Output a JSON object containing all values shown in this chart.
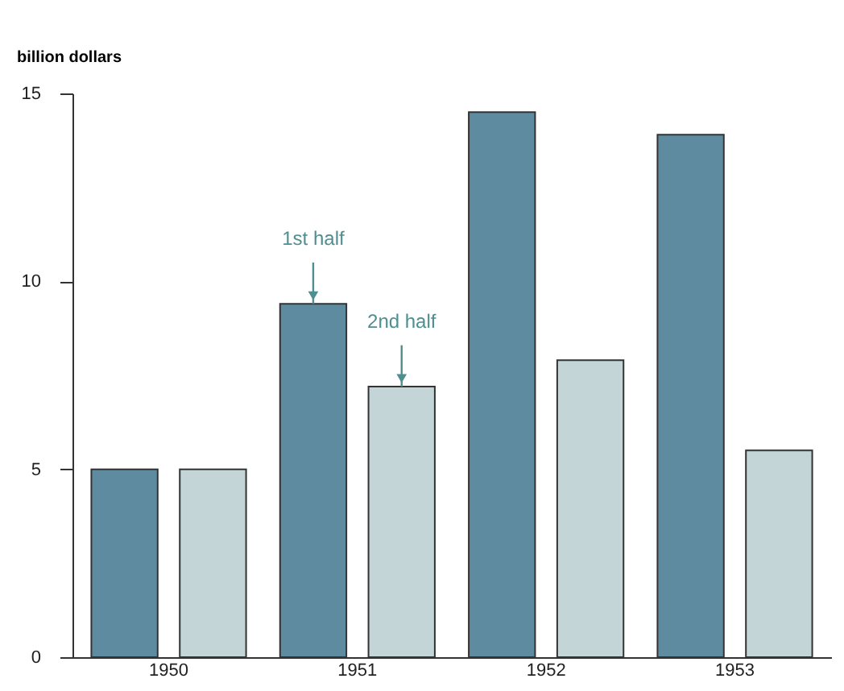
{
  "chart_data": {
    "type": "bar",
    "ylabel": "billion dollars",
    "categories": [
      "1950",
      "1951",
      "1952",
      "1953"
    ],
    "series": [
      {
        "name": "1st half",
        "color": "#5f8ba1",
        "values": [
          5.0,
          9.4,
          14.5,
          13.9
        ]
      },
      {
        "name": "2nd half",
        "color": "#c3d5d6",
        "values": [
          5.0,
          7.2,
          7.9,
          5.5
        ]
      }
    ],
    "ylim": [
      0,
      15
    ],
    "yticks": [
      0,
      5,
      10,
      15
    ],
    "grid": false,
    "legend": false
  }
}
